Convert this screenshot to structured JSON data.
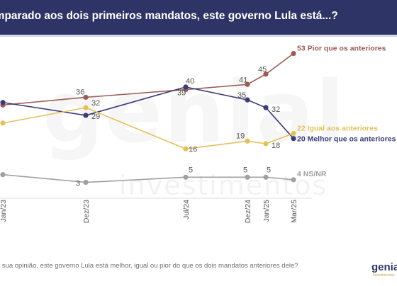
{
  "header": {
    "title": "Comparado aos dois primeiros mandatos, este governo Lula está...?"
  },
  "watermark": {
    "main": "genial",
    "sub": "investimentos"
  },
  "footnote": "Na sua opinião, este governo Lula está melhor, igual ou pior do que os dois mandatos anteriores dele?",
  "logo": {
    "main": "genial",
    "sub": "investimentos"
  },
  "colors": {
    "header_bg": "#2e3566",
    "pior": "#9b5b57",
    "melhor": "#3a3b78",
    "igual": "#e3c15a",
    "nsnr": "#a0a0a0"
  },
  "chart_data": {
    "type": "line",
    "title": "Comparado aos dois primeiros mandatos, este governo Lula está...?",
    "xlabel": "",
    "ylabel": "",
    "ylim": [
      0,
      60
    ],
    "grid": false,
    "x": [
      "Jan/23",
      "Dez/23",
      "Jul/24",
      "Dez/24",
      "Jan/25",
      "Mar/25"
    ],
    "series": [
      {
        "name": "Pior que os anteriores",
        "color": "#9b5b57",
        "values": [
          33,
          36,
          39,
          41,
          45,
          53
        ],
        "labels": [
          "",
          "36",
          "39",
          "41",
          "45",
          "53"
        ],
        "end_label": "53 Pior que os anteriores"
      },
      {
        "name": "Melhor que os anteriores",
        "color": "#3a3b78",
        "values": [
          34,
          29,
          40,
          35,
          32,
          20
        ],
        "labels": [
          "",
          "29",
          "40",
          "35",
          "32",
          "20"
        ],
        "end_label": "20 Melhor que os anteriores"
      },
      {
        "name": "Igual aos anteriores",
        "color": "#e3c15a",
        "values": [
          26,
          32,
          16,
          19,
          18,
          22
        ],
        "labels": [
          "",
          "32",
          "16",
          "19",
          "18",
          "22"
        ],
        "end_label": "22 Igual aos anteriores"
      },
      {
        "name": "NS/NR",
        "color": "#a0a0a0",
        "values": [
          6,
          3,
          5,
          5,
          5,
          4
        ],
        "labels": [
          "",
          "3",
          "5",
          "5",
          "5",
          "4"
        ],
        "end_label": "4 NS/NR"
      }
    ]
  }
}
